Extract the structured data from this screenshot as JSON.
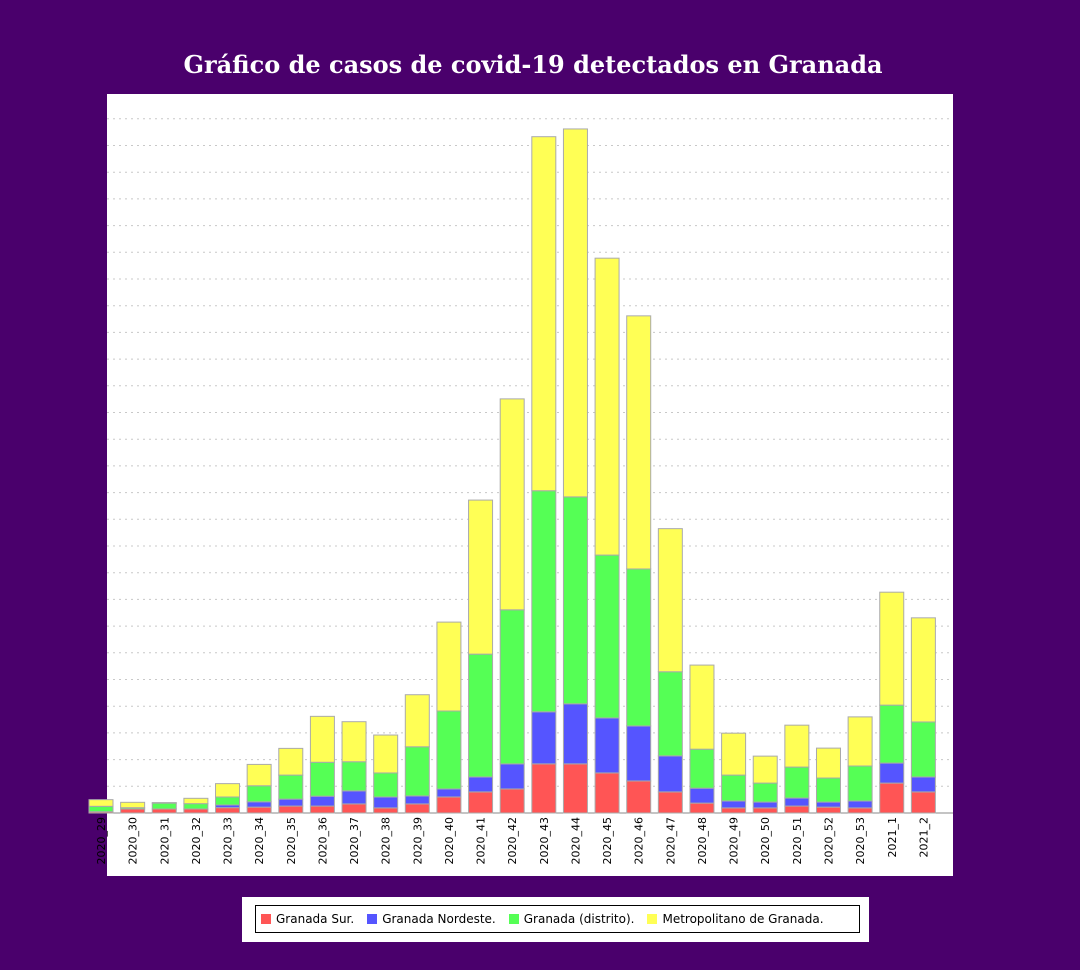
{
  "chart_data": {
    "type": "bar",
    "stacked": true,
    "title": "Gráfico de casos de covid-19 detectados en Granada",
    "xlabel": "",
    "ylabel": "",
    "y_tick_labels_shown": false,
    "grid": true,
    "legend_position": "bottom",
    "ylim": [
      0,
      26.5
    ],
    "categories": [
      "2020_29",
      "2020_30",
      "2020_31",
      "2020_32",
      "2020_33",
      "2020_34",
      "2020_35",
      "2020_36",
      "2020_37",
      "2020_38",
      "2020_39",
      "2020_40",
      "2020_41",
      "2020_42",
      "2020_43",
      "2020_44",
      "2020_45",
      "2020_46",
      "2020_47",
      "2020_48",
      "2020_49",
      "2020_50",
      "2020_51",
      "2020_52",
      "2020_53",
      "2021_1",
      "2021_2"
    ],
    "series": [
      {
        "name": "Granada Sur.",
        "color": "#ff5555",
        "values": [
          0.05,
          0.15,
          0.15,
          0.15,
          0.2,
          0.22,
          0.26,
          0.26,
          0.34,
          0.19,
          0.34,
          0.6,
          0.79,
          0.9,
          1.84,
          1.84,
          1.5,
          1.2,
          0.79,
          0.37,
          0.19,
          0.19,
          0.26,
          0.22,
          0.19,
          1.12,
          0.79
        ]
      },
      {
        "name": "Granada Nordeste.",
        "color": "#5555ff",
        "values": [
          0,
          0,
          0,
          0,
          0.1,
          0.2,
          0.26,
          0.37,
          0.49,
          0.41,
          0.3,
          0.3,
          0.56,
          0.94,
          1.95,
          2.25,
          2.06,
          2.06,
          1.35,
          0.56,
          0.26,
          0.22,
          0.3,
          0.19,
          0.26,
          0.75,
          0.56
        ]
      },
      {
        "name": "Granada (distrito).",
        "color": "#55ff55",
        "values": [
          0.2,
          0.05,
          0.22,
          0.2,
          0.3,
          0.6,
          0.9,
          1.27,
          1.09,
          0.9,
          1.84,
          2.92,
          4.6,
          5.77,
          8.28,
          7.75,
          6.1,
          5.88,
          3.15,
          1.46,
          0.97,
          0.71,
          1.16,
          0.9,
          1.31,
          2.17,
          2.06
        ]
      },
      {
        "name": "Metropolitano de Granada.",
        "color": "#ffff55",
        "values": [
          0.25,
          0.2,
          0.02,
          0.2,
          0.5,
          0.8,
          1.0,
          1.72,
          1.5,
          1.42,
          1.95,
          3.33,
          5.77,
          7.9,
          13.26,
          13.78,
          11.12,
          9.48,
          5.36,
          3.15,
          1.57,
          1.01,
          1.57,
          1.12,
          1.84,
          4.23,
          3.9
        ]
      }
    ]
  }
}
